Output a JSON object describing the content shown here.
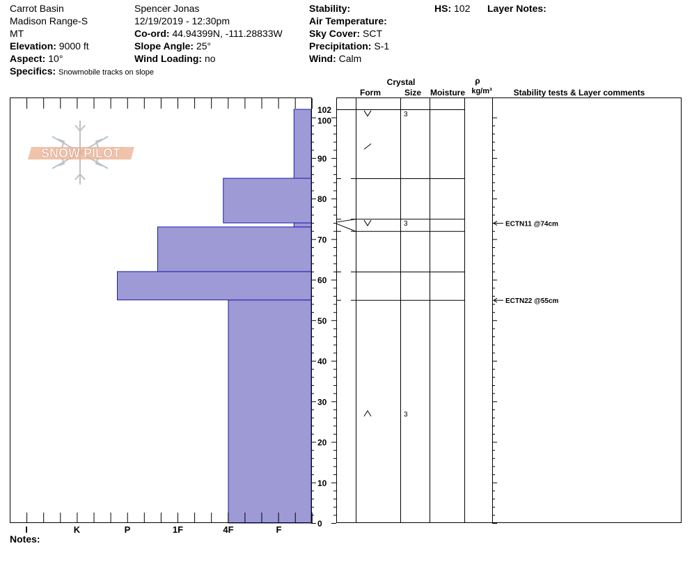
{
  "header": {
    "location": "Carrot Basin",
    "range": "Madison Range-S",
    "state": "MT",
    "elevation_label": "Elevation:",
    "elevation_value": "9000 ft",
    "aspect_label": "Aspect:",
    "aspect_value": "10°",
    "specifics_label": "Specifics:",
    "specifics_value": "Snowmobile tracks on slope",
    "observer": "Spencer Jonas",
    "datetime": "12/19/2019 - 12:30pm",
    "coord_label": "Co-ord:",
    "coord_value": "44.94399N, -111.28833W",
    "slope_label": "Slope Angle:",
    "slope_value": "25°",
    "wind_loading_label": "Wind Loading:",
    "wind_loading_value": "no",
    "stability_label": "Stability:",
    "stability_value": "",
    "air_temp_label": "Air Temperature:",
    "air_temp_value": "",
    "sky_label": "Sky Cover:",
    "sky_value": "SCT",
    "precip_label": "Precipitation:",
    "precip_value": "S-1",
    "wind_label": "Wind:",
    "wind_value": "Calm",
    "hs_label": "HS:",
    "hs_value": "102",
    "layer_notes_label": "Layer Notes:"
  },
  "columns": {
    "crystal": "Crystal",
    "form": "Form",
    "size": "Size",
    "moisture": "Moisture",
    "rho": "ρ",
    "density_unit": "kg/m³",
    "stability": "Stability tests & Layer comments"
  },
  "notes_label": "Notes:",
  "logo_text": "SNOW PILOT",
  "colors": {
    "hardness_fill": "#9d9ad6",
    "hardness_stroke": "#1a1aa8",
    "logo_orange": "#e8a27a",
    "logo_grey": "#aeb8c2"
  },
  "chart_data": {
    "type": "bar",
    "orientation": "horizontal-profile",
    "ylim": [
      0,
      102
    ],
    "y_ticks": [
      0,
      10,
      20,
      30,
      40,
      50,
      60,
      70,
      80,
      90,
      100,
      102
    ],
    "hardness_scale": [
      "I",
      "K",
      "P",
      "1F",
      "4F",
      "F"
    ],
    "hardness_index": {
      "I": 1,
      "K": 2,
      "P": 3,
      "1F": 4,
      "4F": 5,
      "F": 6
    },
    "hardness_layers": [
      {
        "bottom": 0,
        "top": 55,
        "hardness": 5.0
      },
      {
        "bottom": 55,
        "top": 62,
        "hardness": 2.8
      },
      {
        "bottom": 62,
        "top": 73,
        "hardness": 3.6
      },
      {
        "bottom": 73,
        "top": 74,
        "hardness": 6.3
      },
      {
        "bottom": 74,
        "top": 85,
        "hardness": 4.9
      },
      {
        "bottom": 85,
        "top": 102,
        "hardness": 6.3
      }
    ],
    "layer_boundaries": [
      102,
      85,
      75,
      72,
      62,
      55
    ],
    "grain_forms": [
      {
        "depth": 101,
        "symbol": "V",
        "size": "3"
      },
      {
        "depth": 93,
        "symbol": "/",
        "size": ""
      },
      {
        "depth": 74,
        "symbol": "V",
        "size": "3"
      },
      {
        "depth": 27,
        "symbol": "^",
        "size": "3"
      }
    ],
    "stability_tests": [
      {
        "depth": 74,
        "label": "ECTN11 @74cm"
      },
      {
        "depth": 55,
        "label": "ECTN22 @55cm"
      }
    ]
  }
}
